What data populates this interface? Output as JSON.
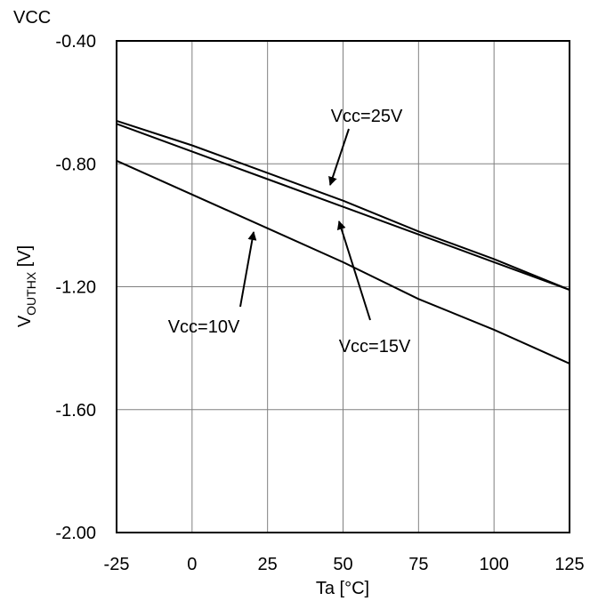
{
  "corner_label": "VCC",
  "chart_data": {
    "type": "line",
    "title": "",
    "xlabel": "Ta [°C]",
    "ylabel": {
      "main": "V",
      "subscript": "OUTHX",
      "unit": " [V]"
    },
    "xlim": [
      -25,
      125
    ],
    "ylim": [
      -2.0,
      -0.4
    ],
    "x_ticks": [
      -25,
      0,
      25,
      50,
      75,
      100,
      125
    ],
    "y_ticks": [
      -0.4,
      -0.8,
      -1.2,
      -1.6,
      -2.0
    ],
    "x_tick_labels": [
      "-25",
      "0",
      "25",
      "50",
      "75",
      "100",
      "125"
    ],
    "y_tick_labels": [
      "-0.40",
      "-0.80",
      "-1.20",
      "-1.60",
      "-2.00"
    ],
    "grid": true,
    "series": [
      {
        "name": "Vcc=25V",
        "x": [
          -25,
          0,
          25,
          50,
          75,
          100,
          125
        ],
        "y": [
          -0.66,
          -0.74,
          -0.83,
          -0.92,
          -1.02,
          -1.11,
          -1.21
        ]
      },
      {
        "name": "Vcc=15V",
        "x": [
          -25,
          0,
          25,
          50,
          75,
          100,
          125
        ],
        "y": [
          -0.67,
          -0.76,
          -0.85,
          -0.94,
          -1.03,
          -1.12,
          -1.21
        ]
      },
      {
        "name": "Vcc=10V",
        "x": [
          -25,
          0,
          25,
          50,
          75,
          100,
          125
        ],
        "y": [
          -0.79,
          -0.9,
          -1.01,
          -1.12,
          -1.24,
          -1.34,
          -1.45
        ]
      }
    ],
    "annotations": [
      {
        "text": "Vcc=25V",
        "series": "Vcc=25V"
      },
      {
        "text": "Vcc=15V",
        "series": "Vcc=15V"
      },
      {
        "text": "Vcc=10V",
        "series": "Vcc=10V"
      }
    ],
    "line_color": "#000000",
    "grid_color": "#808080"
  }
}
